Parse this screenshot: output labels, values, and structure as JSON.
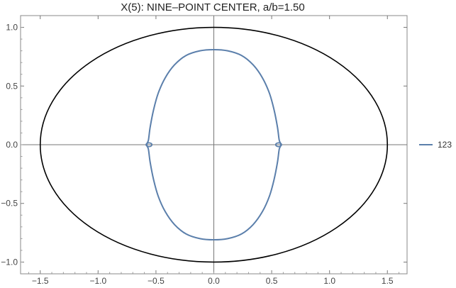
{
  "chart_data": {
    "type": "line",
    "title": "X(5): NINE–POINT CENTER, a/b=1.50",
    "xlabel": "",
    "ylabel": "",
    "xlim": [
      -1.67,
      1.67
    ],
    "ylim": [
      -1.1,
      1.1
    ],
    "x_ticks": [
      -1.5,
      -1.0,
      -0.5,
      0.0,
      0.5,
      1.0,
      1.5
    ],
    "x_tick_labels": [
      "−1.5",
      "−1.0",
      "−0.5",
      "0.0",
      "0.5",
      "1.0",
      "1.5"
    ],
    "y_ticks": [
      -1.0,
      -0.5,
      0.0,
      0.5,
      1.0
    ],
    "y_tick_labels": [
      "−1.0",
      "−0.5",
      "0.0",
      "0.5",
      "1.0"
    ],
    "grid": false,
    "axes_through_origin": true,
    "legend_position": "right",
    "ellipse": {
      "a": 1.5,
      "b": 1.0,
      "color": "#000000"
    },
    "series": [
      {
        "name": "123",
        "color": "#5b7fab",
        "points": [
          [
            0.0,
            0.81
          ],
          [
            0.12,
            0.8
          ],
          [
            0.24,
            0.76
          ],
          [
            0.34,
            0.68
          ],
          [
            0.42,
            0.57
          ],
          [
            0.48,
            0.44
          ],
          [
            0.52,
            0.3
          ],
          [
            0.55,
            0.15
          ],
          [
            0.565,
            0.04
          ],
          [
            0.58,
            0.0
          ],
          [
            0.565,
            -0.04
          ],
          [
            0.55,
            -0.15
          ],
          [
            0.52,
            -0.3
          ],
          [
            0.48,
            -0.44
          ],
          [
            0.42,
            -0.57
          ],
          [
            0.34,
            -0.68
          ],
          [
            0.24,
            -0.76
          ],
          [
            0.12,
            -0.8
          ],
          [
            0.0,
            -0.81
          ],
          [
            -0.12,
            -0.8
          ],
          [
            -0.24,
            -0.76
          ],
          [
            -0.34,
            -0.68
          ],
          [
            -0.42,
            -0.57
          ],
          [
            -0.48,
            -0.44
          ],
          [
            -0.52,
            -0.3
          ],
          [
            -0.55,
            -0.15
          ],
          [
            -0.565,
            -0.04
          ],
          [
            -0.58,
            0.0
          ],
          [
            -0.565,
            0.04
          ],
          [
            -0.55,
            0.15
          ],
          [
            -0.52,
            0.3
          ],
          [
            -0.48,
            0.44
          ],
          [
            -0.42,
            0.57
          ],
          [
            -0.34,
            0.68
          ],
          [
            -0.24,
            0.76
          ],
          [
            -0.12,
            0.8
          ],
          [
            0.0,
            0.81
          ]
        ],
        "loops": [
          {
            "center": [
              -0.56,
              0.0
            ],
            "rx": 0.025,
            "ry": 0.016
          },
          {
            "center": [
              0.56,
              0.0
            ],
            "rx": 0.025,
            "ry": 0.016
          }
        ]
      }
    ]
  }
}
